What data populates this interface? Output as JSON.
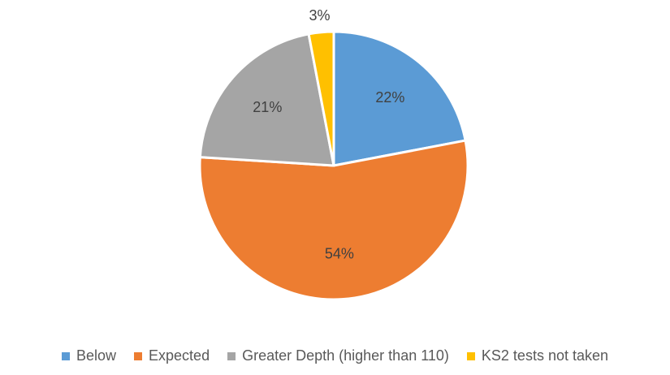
{
  "chart_data": {
    "type": "pie",
    "title": "",
    "categories": [
      "Below",
      "Expected",
      "Greater Depth (higher than 110)",
      "KS2 tests not taken"
    ],
    "values": [
      22,
      54,
      21,
      3
    ],
    "labels": [
      "22%",
      "54%",
      "21%",
      "3%"
    ],
    "colors": [
      "#5B9BD5",
      "#ED7D31",
      "#A5A5A5",
      "#FFC000"
    ],
    "start_angle_deg": 0,
    "direction": "clockwise",
    "legend_position": "bottom"
  }
}
